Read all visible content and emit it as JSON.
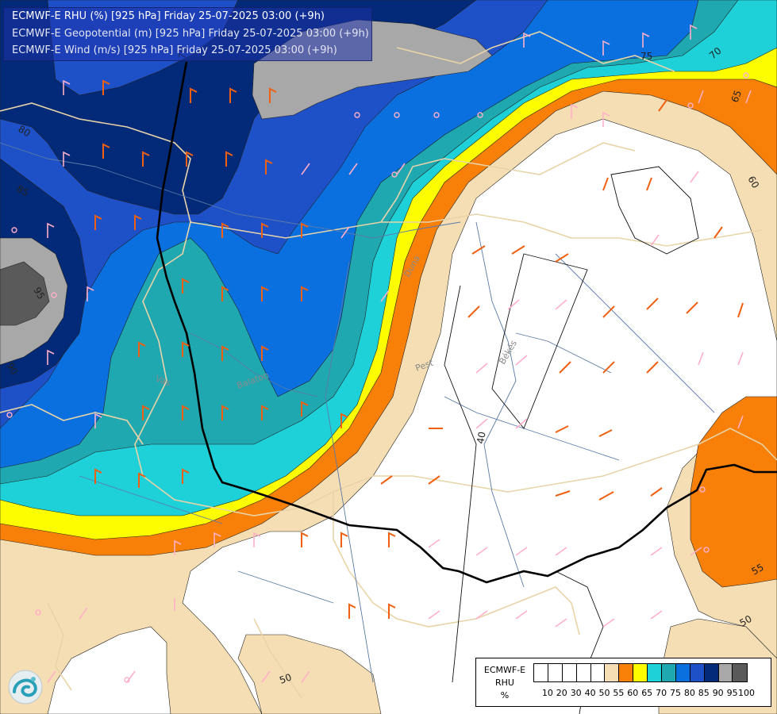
{
  "header": {
    "lines": [
      "ECMWF-E RHU (%) [925 hPa] Friday 25-07-2025 03:00 (+9h)",
      "ECMWF-E Geopotential (m) [925 hPa] Friday 25-07-2025 03:00 (+9h)",
      "ECMWF-E Wind (m/s) [925 hPa] Friday 25-07-2025 03:00 (+9h)"
    ]
  },
  "legend": {
    "title_lines": [
      "ECMWF-E",
      "RHU",
      "%"
    ],
    "ticks": [
      "10",
      "20",
      "30",
      "40",
      "50",
      "55",
      "60",
      "65",
      "70",
      "75",
      "80",
      "85",
      "90",
      "95",
      "100"
    ],
    "colors": [
      "#ffffff",
      "#ffffff",
      "#ffffff",
      "#ffffff",
      "#ffffff",
      "#f5deb3",
      "#f88008",
      "#fdfd00",
      "#1ed0d8",
      "#20a8b0",
      "#0a70e0",
      "#1e50c8",
      "#032a78",
      "#a8a8a8",
      "#5a5a5a"
    ]
  },
  "map": {
    "contour_labels": [
      "70",
      "75",
      "70",
      "65",
      "60",
      "80",
      "85",
      "95",
      "90",
      "40",
      "50",
      "55",
      "50"
    ],
    "place_labels": [
      "Duna",
      "Pest",
      "Békés",
      "Vas",
      "Balaton"
    ]
  },
  "colors": {
    "rhu_50_55": "#f5deb3",
    "rhu_55_60": "#f88008",
    "rhu_60_65": "#fdfd00",
    "rhu_65_70": "#1ed0d8",
    "rhu_70_75": "#20a8b0",
    "rhu_75_80": "#0a70e0",
    "rhu_80_85": "#1e50c8",
    "rhu_85_90": "#032a78",
    "rhu_90_95": "#a8a8a8",
    "rhu_95_100": "#5a5a5a",
    "wind_barb_warm": "#f06010",
    "wind_barb_cool": "#ffb0c8",
    "border": "#e8d4a8",
    "river": "#5a7aa8"
  }
}
